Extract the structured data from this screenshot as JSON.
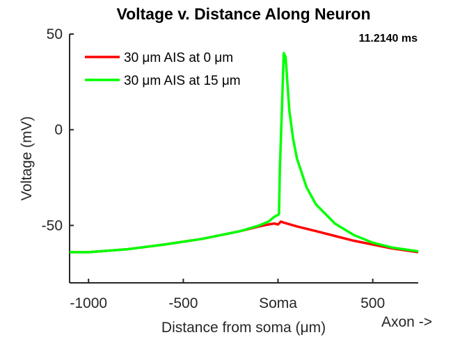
{
  "chart_data": {
    "type": "line",
    "title": "Voltage v. Distance Along Neuron",
    "subtitle": "11.2140 ms",
    "x_label": "Distance from soma (μm)",
    "y_label": "Voltage (mV)",
    "annotation": "Axon ->",
    "xlim": [
      -1100,
      740
    ],
    "ylim": [
      -80,
      50
    ],
    "xticks": [
      -1000,
      -500,
      {
        "value": 0,
        "label": "Soma"
      },
      500
    ],
    "yticks": [
      -50,
      0,
      50
    ],
    "legend": "upper left",
    "series": [
      {
        "name": "30 μm AIS at 0 μm",
        "color": "#ff0000",
        "x": [
          -1100,
          -1000,
          -800,
          -600,
          -400,
          -300,
          -200,
          -100,
          -50,
          -20,
          0,
          15,
          30,
          100,
          200,
          300,
          400,
          500,
          600,
          740
        ],
        "values": [
          -64,
          -64,
          -62.5,
          -60,
          -57,
          -55,
          -53,
          -50.5,
          -49.5,
          -49,
          -49.5,
          -48,
          -48.5,
          -50.5,
          -53,
          -55.5,
          -58,
          -60,
          -62,
          -64
        ]
      },
      {
        "name": "30 μm AIS at 15 μm",
        "color": "#00ff00",
        "x": [
          -1100,
          -1000,
          -800,
          -600,
          -400,
          -300,
          -200,
          -100,
          -50,
          -20,
          -10,
          0,
          5,
          10,
          20,
          30,
          40,
          60,
          80,
          100,
          150,
          200,
          300,
          400,
          500,
          600,
          740
        ],
        "values": [
          -64,
          -64,
          -62.5,
          -60,
          -57,
          -55,
          -53,
          -50,
          -48,
          -45.5,
          -45,
          -44.5,
          -44,
          -20,
          10,
          40,
          38,
          10,
          -5,
          -15,
          -30,
          -39,
          -49,
          -55,
          -59,
          -61.5,
          -63.5
        ]
      }
    ]
  }
}
